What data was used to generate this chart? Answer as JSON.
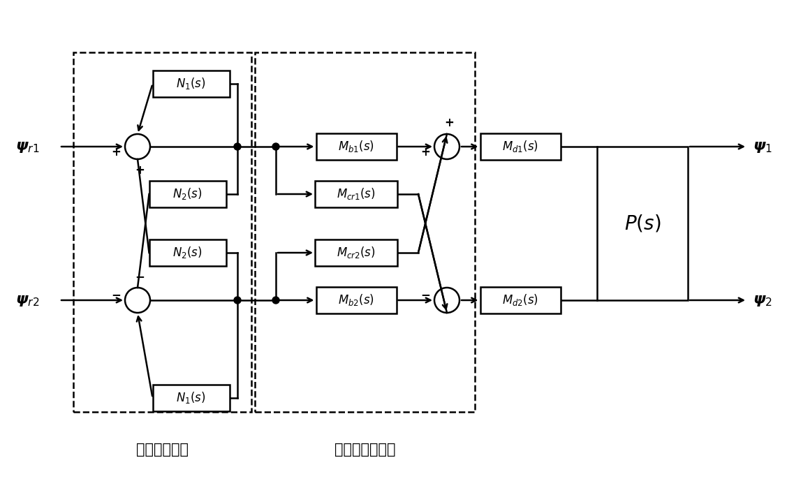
{
  "background_color": "#ffffff",
  "label_psi_r1": "$\\boldsymbol{\\psi}_{r1}$",
  "label_psi_r2": "$\\boldsymbol{\\psi}_{r2}$",
  "label_psi_1": "$\\boldsymbol{\\psi}_1$",
  "label_psi_2": "$\\boldsymbol{\\psi}_2$",
  "label_N1_top": "$N_1(s)$",
  "label_N2_top": "$N_2(s)$",
  "label_N2_bot": "$N_2(s)$",
  "label_N1_bot": "$N_1(s)$",
  "label_Mb1": "$M_{b1}(s)$",
  "label_Mb2": "$M_{b2}(s)$",
  "label_Mcr1": "$M_{cr1}(s)$",
  "label_Mcr2": "$M_{cr2}(s)$",
  "label_Md1": "$M_{d1}(s)$",
  "label_Md2": "$M_{d2}(s)$",
  "label_Ps": "$P(s)$",
  "label_bottom1": "同频振动抑制",
  "label_bottom2": "交叉解耦控制器",
  "line_color": "#000000"
}
